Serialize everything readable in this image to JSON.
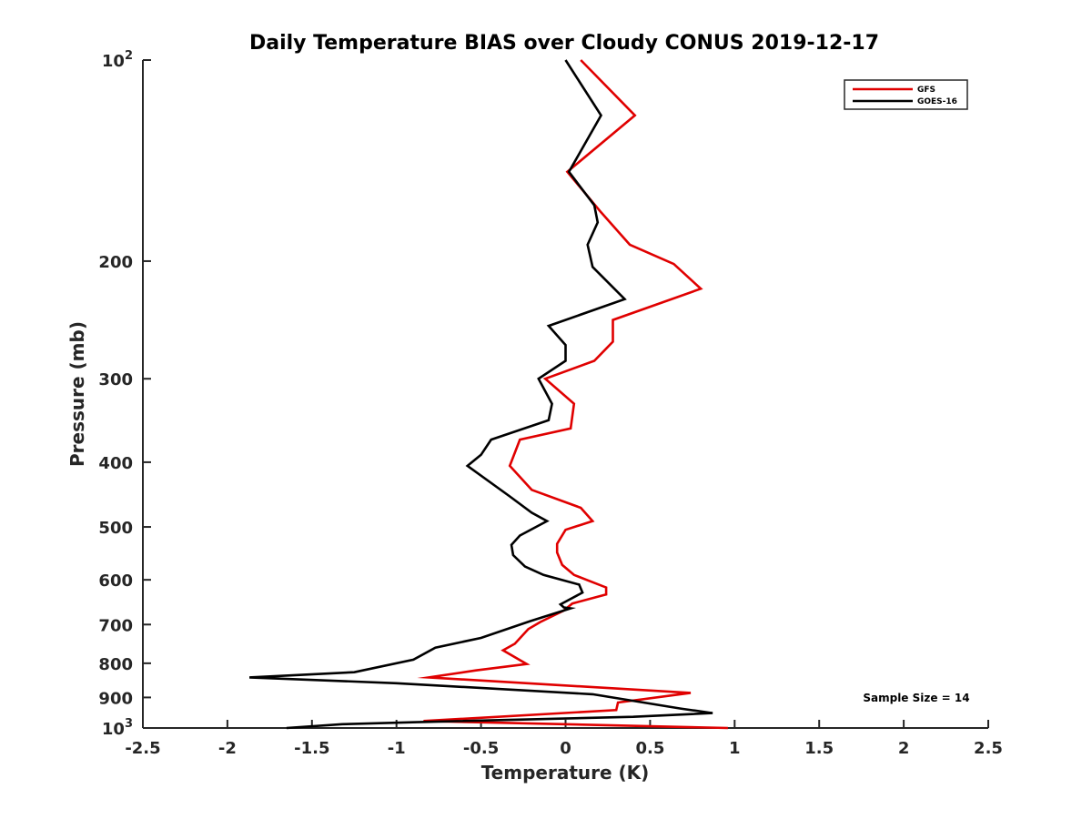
{
  "chart_data": {
    "type": "line",
    "title": "Daily Temperature BIAS over Cloudy CONUS 2019-12-17",
    "xlabel": "Temperature (K)",
    "ylabel": "Pressure (mb)",
    "xlim": [
      -2.5,
      2.5
    ],
    "ylim": [
      100,
      1000
    ],
    "y_scale": "log",
    "y_reversed": true,
    "grid": false,
    "legend_position": "top-right",
    "x_ticks": [
      {
        "value": -2.5,
        "label": "-2.5"
      },
      {
        "value": -2,
        "label": "-2"
      },
      {
        "value": -1.5,
        "label": "-1.5"
      },
      {
        "value": -1,
        "label": "-1"
      },
      {
        "value": -0.5,
        "label": "-0.5"
      },
      {
        "value": 0,
        "label": "0"
      },
      {
        "value": 0.5,
        "label": "0.5"
      },
      {
        "value": 1,
        "label": "1"
      },
      {
        "value": 1.5,
        "label": "1.5"
      },
      {
        "value": 2,
        "label": "2"
      },
      {
        "value": 2.5,
        "label": "2.5"
      }
    ],
    "y_ticks": [
      {
        "value": 100,
        "label": "10",
        "exp": "2"
      },
      {
        "value": 200,
        "label": "200"
      },
      {
        "value": 300,
        "label": "300"
      },
      {
        "value": 400,
        "label": "400"
      },
      {
        "value": 500,
        "label": "500"
      },
      {
        "value": 600,
        "label": "600"
      },
      {
        "value": 700,
        "label": "700"
      },
      {
        "value": 800,
        "label": "800"
      },
      {
        "value": 900,
        "label": "900"
      },
      {
        "value": 1000,
        "label": "10",
        "exp": "3"
      }
    ],
    "series": [
      {
        "name": "GFS",
        "color": "#e00000",
        "points": [
          [
            0.09,
            100
          ],
          [
            0.41,
            121
          ],
          [
            0.01,
            147
          ],
          [
            0.21,
            169
          ],
          [
            0.38,
            189
          ],
          [
            0.64,
            202
          ],
          [
            0.8,
            220
          ],
          [
            0.28,
            245
          ],
          [
            0.28,
            264
          ],
          [
            0.17,
            282
          ],
          [
            -0.12,
            300
          ],
          [
            0.05,
            327
          ],
          [
            0.03,
            356
          ],
          [
            -0.27,
            370
          ],
          [
            -0.33,
            405
          ],
          [
            -0.2,
            440
          ],
          [
            0.09,
            468
          ],
          [
            0.16,
            490
          ],
          [
            0.0,
            505
          ],
          [
            -0.05,
            530
          ],
          [
            -0.05,
            546
          ],
          [
            -0.02,
            570
          ],
          [
            0.05,
            590
          ],
          [
            0.24,
            616
          ],
          [
            0.24,
            631
          ],
          [
            0.04,
            651
          ],
          [
            -0.01,
            667
          ],
          [
            -0.15,
            694
          ],
          [
            -0.22,
            711
          ],
          [
            -0.3,
            748
          ],
          [
            -0.37,
            765
          ],
          [
            -0.23,
            802
          ],
          [
            -0.53,
            820
          ],
          [
            -0.81,
            840
          ],
          [
            0.74,
            886
          ],
          [
            0.31,
            916
          ],
          [
            0.3,
            940
          ],
          [
            -0.84,
            976
          ],
          [
            0.96,
            1000
          ]
        ]
      },
      {
        "name": "GOES-16",
        "color": "#000000",
        "points": [
          [
            0.0,
            100
          ],
          [
            0.21,
            121
          ],
          [
            0.02,
            147
          ],
          [
            0.17,
            165
          ],
          [
            0.19,
            175
          ],
          [
            0.13,
            189
          ],
          [
            0.16,
            204
          ],
          [
            0.35,
            228
          ],
          [
            -0.1,
            250
          ],
          [
            0.0,
            267
          ],
          [
            0.0,
            282
          ],
          [
            -0.16,
            300
          ],
          [
            -0.08,
            327
          ],
          [
            -0.1,
            346
          ],
          [
            -0.44,
            370
          ],
          [
            -0.5,
            390
          ],
          [
            -0.58,
            405
          ],
          [
            -0.33,
            450
          ],
          [
            -0.2,
            476
          ],
          [
            -0.11,
            490
          ],
          [
            -0.27,
            515
          ],
          [
            -0.32,
            532
          ],
          [
            -0.31,
            551
          ],
          [
            -0.24,
            573
          ],
          [
            -0.13,
            590
          ],
          [
            0.08,
            610
          ],
          [
            0.1,
            627
          ],
          [
            -0.03,
            653
          ],
          [
            -0.01,
            660
          ],
          [
            0.03,
            662
          ],
          [
            -0.21,
            692
          ],
          [
            -0.5,
            733
          ],
          [
            -0.77,
            758
          ],
          [
            -0.9,
            790
          ],
          [
            -1.25,
            825
          ],
          [
            -1.87,
            840
          ],
          [
            -1.0,
            857
          ],
          [
            0.16,
            890
          ],
          [
            0.68,
            935
          ],
          [
            0.87,
            950
          ],
          [
            0.4,
            962
          ],
          [
            -0.88,
            980
          ],
          [
            -1.32,
            987
          ],
          [
            -1.65,
            1000
          ]
        ]
      }
    ],
    "annotation": "Sample Size = 14"
  }
}
